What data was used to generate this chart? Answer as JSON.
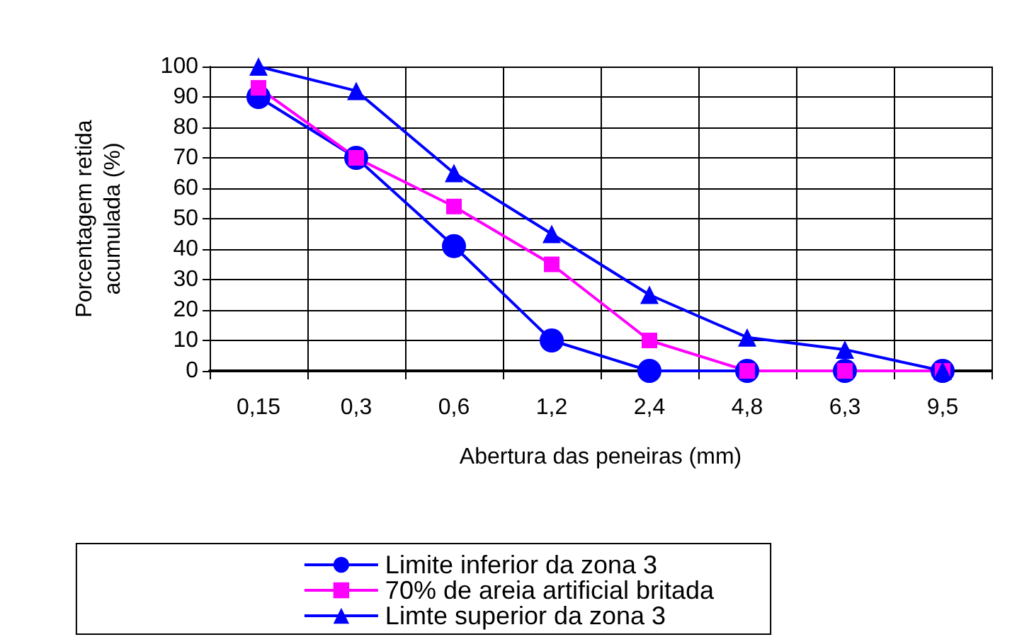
{
  "chart_data": {
    "type": "line",
    "xlabel": "Abertura das peneiras (mm)",
    "ylabel": "Porcentagem retida\nacumulada (%)",
    "categories": [
      "0,15",
      "0,3",
      "0,6",
      "1,2",
      "2,4",
      "4,8",
      "6,3",
      "9,5"
    ],
    "series": [
      {
        "name": "Limite inferior da zona 3",
        "color": "#0000ff",
        "marker": "circle",
        "values": [
          90,
          70,
          41,
          10,
          0,
          0,
          0,
          0
        ]
      },
      {
        "name": "70% de areia artificial britada",
        "color": "#ff00ff",
        "marker": "square",
        "values": [
          93,
          70,
          54,
          35,
          10,
          0,
          0,
          0
        ]
      },
      {
        "name": "Limte superior da zona 3",
        "color": "#0000ff",
        "marker": "triangle",
        "values": [
          100,
          92,
          65,
          45,
          25,
          11,
          7,
          0
        ]
      }
    ],
    "ylim": [
      0,
      100
    ],
    "yticks": [
      0,
      10,
      20,
      30,
      40,
      50,
      60,
      70,
      80,
      90,
      100
    ],
    "grid": true,
    "legend": "bottom",
    "line_style": "solid"
  }
}
